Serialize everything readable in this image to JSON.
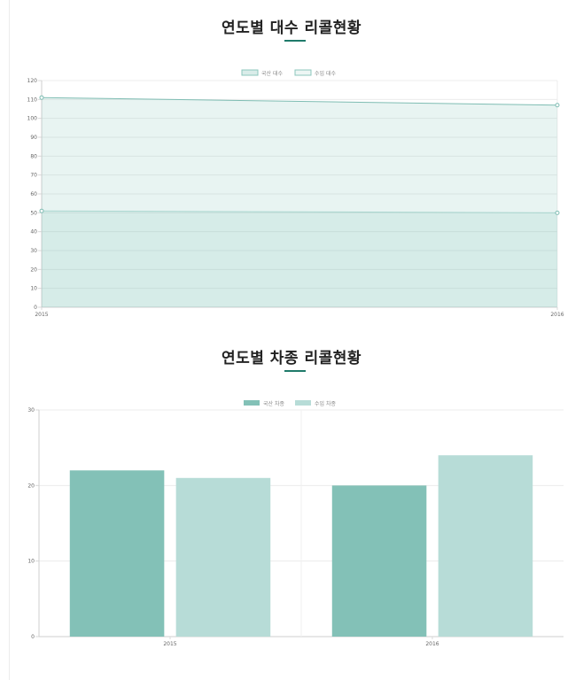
{
  "section1": {
    "title": "연도별 대수 리콜현황"
  },
  "section2": {
    "title": "연도별 차종 리콜현황"
  },
  "chart_data": [
    {
      "type": "area",
      "title": "연도별 대수 리콜현황",
      "categories": [
        "2015",
        "2016"
      ],
      "series": [
        {
          "name": "국산 대수",
          "values": [
            51,
            50
          ],
          "color": "#7fc3b8"
        },
        {
          "name": "수입 대수",
          "values": [
            111,
            107
          ],
          "color": "#7fc3b8"
        }
      ],
      "ylim": [
        0,
        120
      ],
      "yticks": [
        0,
        10,
        20,
        30,
        40,
        50,
        60,
        70,
        80,
        90,
        100,
        110,
        120
      ],
      "grid": true,
      "legend": "top"
    },
    {
      "type": "bar",
      "title": "연도별 차종 리콜현황",
      "categories": [
        "2015",
        "2016"
      ],
      "series": [
        {
          "name": "국산 차종",
          "values": [
            22,
            20
          ],
          "color": "#83c1b7"
        },
        {
          "name": "수입 차종",
          "values": [
            21,
            24
          ],
          "color": "#b7dcd7"
        }
      ],
      "ylim": [
        0,
        30
      ],
      "yticks": [
        0,
        10,
        20,
        30
      ],
      "grid": true,
      "legend": "top"
    }
  ]
}
